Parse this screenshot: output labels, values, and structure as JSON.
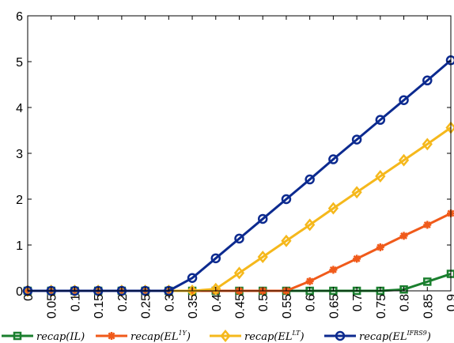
{
  "chart_data": {
    "type": "line",
    "title": "",
    "xlabel": "",
    "ylabel": "",
    "x": [
      0,
      0.05,
      0.1,
      0.15,
      0.2,
      0.25,
      0.3,
      0.35,
      0.4,
      0.45,
      0.5,
      0.55,
      0.6,
      0.65,
      0.7,
      0.75,
      0.8,
      0.85,
      0.9
    ],
    "x_tick_labels": [
      "0",
      "0.05",
      "0.1",
      "0.15",
      "0.2",
      "0.25",
      "0.3",
      "0.35",
      "0.4",
      "0.45",
      "0.5",
      "0.55",
      "0.6",
      "0.65",
      "0.7",
      "0.75",
      "0.8",
      "0.85",
      "0.9"
    ],
    "xlim": [
      0,
      0.9
    ],
    "ylim": [
      0,
      6
    ],
    "y_ticks": [
      0,
      1,
      2,
      3,
      4,
      5,
      6
    ],
    "y_tick_labels": [
      "0",
      "1",
      "2",
      "3",
      "4",
      "5",
      "6"
    ],
    "grid": false,
    "legend_position": "bottom",
    "series": [
      {
        "label_base": "recap(IL)",
        "label_sup": "",
        "label_tail": "",
        "color": "#1a7f2e",
        "marker": "square",
        "values": [
          0,
          0,
          0,
          0,
          0,
          0,
          0,
          0,
          0,
          0,
          0,
          0,
          0,
          0,
          0,
          0,
          0.03,
          0.2,
          0.37
        ]
      },
      {
        "label_base": "recap(EL",
        "label_sup": "1Y",
        "label_tail": ")",
        "color": "#f05a1a",
        "marker": "asterisk",
        "values": [
          0,
          0,
          0,
          0,
          0,
          0,
          0,
          0,
          0,
          0,
          0,
          0,
          0.21,
          0.46,
          0.7,
          0.95,
          1.2,
          1.44,
          1.69
        ]
      },
      {
        "label_base": "recap(EL",
        "label_sup": "LT",
        "label_tail": ")",
        "color": "#f5b81c",
        "marker": "diamond",
        "values": [
          0,
          0,
          0,
          0,
          0,
          0,
          0,
          0,
          0.04,
          0.39,
          0.74,
          1.09,
          1.44,
          1.8,
          2.15,
          2.5,
          2.85,
          3.2,
          3.56
        ]
      },
      {
        "label_base": "recap(EL",
        "label_sup": "IFRS9",
        "label_tail": ")",
        "color": "#0c2a8f",
        "marker": "circle",
        "values": [
          0,
          0,
          0,
          0,
          0,
          0,
          0,
          0.28,
          0.71,
          1.14,
          1.57,
          2.0,
          2.43,
          2.87,
          3.3,
          3.73,
          4.16,
          4.59,
          5.03
        ]
      }
    ]
  }
}
